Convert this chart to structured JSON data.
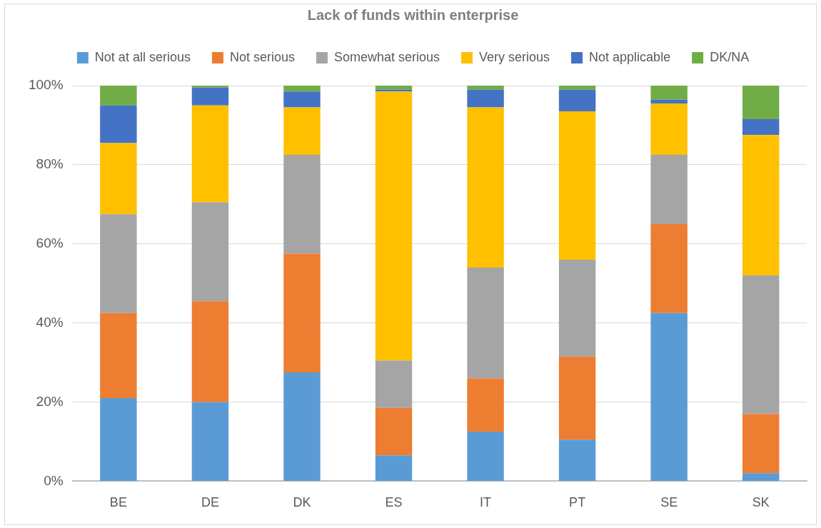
{
  "chart_data": {
    "type": "bar",
    "title": "Lack of funds within enterprise",
    "stacked": true,
    "categories": [
      "BE",
      "DE",
      "DK",
      "ES",
      "IT",
      "PT",
      "SE",
      "SK"
    ],
    "series": [
      {
        "name": "Not at all serious",
        "color": "#5b9bd5",
        "values": [
          21,
          20,
          27.5,
          6.5,
          12.5,
          10.5,
          42.5,
          2
        ]
      },
      {
        "name": "Not serious",
        "color": "#ed7d31",
        "values": [
          21.5,
          25.5,
          30,
          12,
          13.5,
          21,
          22.5,
          15
        ]
      },
      {
        "name": "Somewhat serious",
        "color": "#a5a5a5",
        "values": [
          25,
          25,
          25,
          12,
          28,
          24.5,
          17.5,
          35
        ]
      },
      {
        "name": "Very serious",
        "color": "#ffc000",
        "values": [
          18,
          24.5,
          12,
          68,
          40.5,
          37.5,
          13,
          35.5
        ]
      },
      {
        "name": "Not applicable",
        "color": "#4472c4",
        "values": [
          9.5,
          4.5,
          4,
          0.5,
          4.5,
          5.5,
          1,
          4
        ]
      },
      {
        "name": "DK/NA",
        "color": "#70ad47",
        "values": [
          5,
          0.5,
          1.5,
          1,
          1,
          1,
          3.5,
          8.5
        ]
      }
    ],
    "ylim": [
      0,
      100
    ],
    "yticks": [
      {
        "value": 0,
        "label": "0%"
      },
      {
        "value": 20,
        "label": "20%"
      },
      {
        "value": 40,
        "label": "40%"
      },
      {
        "value": 60,
        "label": "60%"
      },
      {
        "value": 80,
        "label": "80%"
      },
      {
        "value": 100,
        "label": "100%"
      }
    ],
    "grid": "y",
    "legend": "top"
  }
}
